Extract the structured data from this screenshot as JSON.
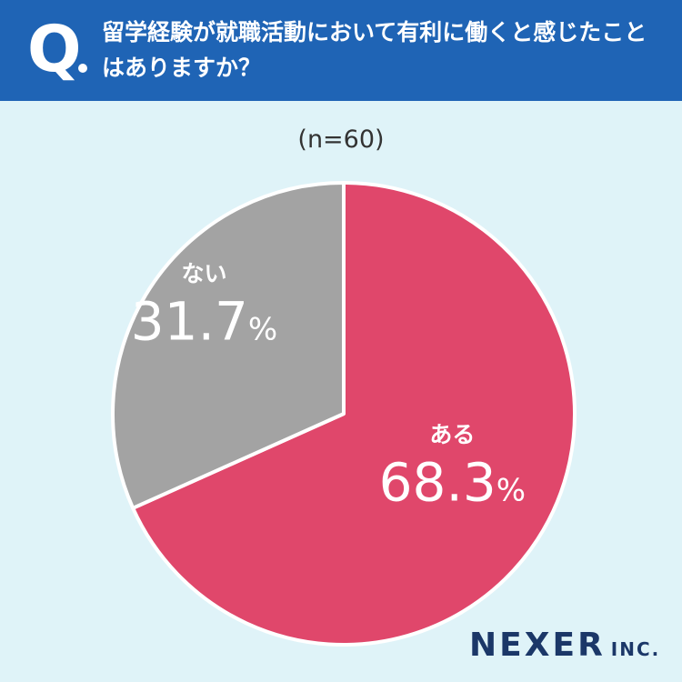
{
  "header": {
    "q_label": "Q",
    "question": "留学経験が就職活動において有利に働くと感じたことはありますか？"
  },
  "chart_data": {
    "type": "pie",
    "sample_label": "(n=60)",
    "slices": [
      {
        "label": "ある",
        "value": 68.3,
        "value_label": "68.3",
        "unit": "%",
        "color": "#e0476b"
      },
      {
        "label": "ない",
        "value": 31.7,
        "value_label": "31.7",
        "unit": "%",
        "color": "#a3a3a3"
      }
    ]
  },
  "brand": {
    "name": "NEXER",
    "suffix": "INC."
  }
}
